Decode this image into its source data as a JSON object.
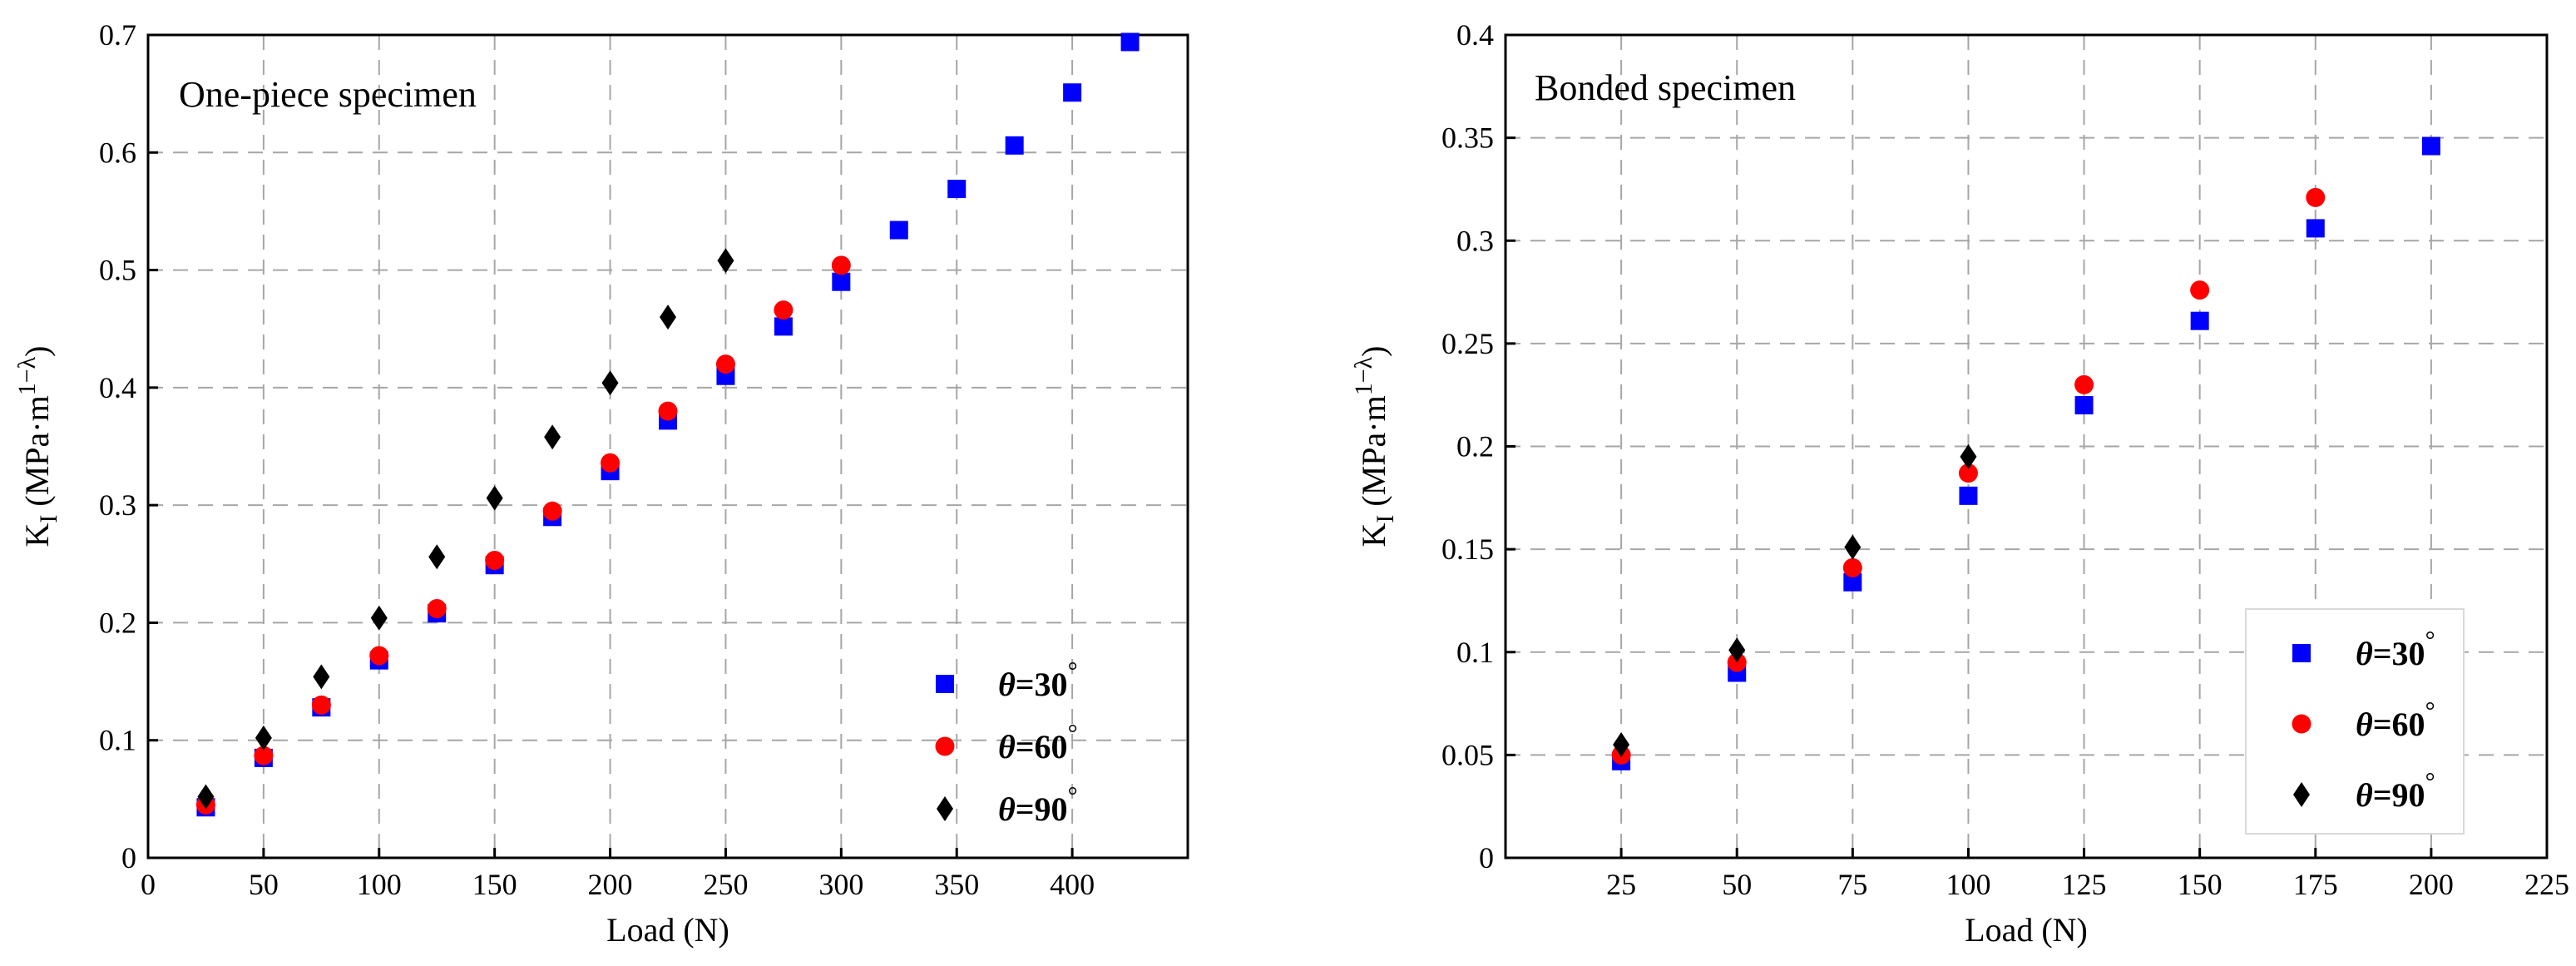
{
  "chart_data": [
    {
      "type": "scatter",
      "title": "One-piece specimen",
      "xlabel": "Load (N)",
      "ylabel": {
        "main": "K",
        "sub": "I",
        "units_prefix": " (MPa·m",
        "units_sup": "1−λ",
        "units_suffix": ")"
      },
      "xlim": [
        0,
        450
      ],
      "ylim": [
        0,
        0.7
      ],
      "xticks": [
        0,
        50,
        100,
        150,
        200,
        250,
        300,
        350,
        400
      ],
      "xtick_labels": [
        "0",
        "50",
        "100",
        "150",
        "200",
        "250",
        "300",
        "350",
        "400"
      ],
      "yticks": [
        0,
        0.1,
        0.2,
        0.3,
        0.4,
        0.5,
        0.6,
        0.7
      ],
      "ytick_labels": [
        "0",
        "0.1",
        "0.2",
        "0.3",
        "0.4",
        "0.5",
        "0.6",
        "0.7"
      ],
      "grid": true,
      "legend_position": "bottom-right",
      "series": [
        {
          "name": "θ=30°",
          "symbol": "θ",
          "value_text": "=30",
          "degree": "°",
          "marker": "square",
          "color": "#0000ff",
          "x": [
            25,
            50,
            75,
            100,
            125,
            150,
            175,
            200,
            225,
            250,
            275,
            300,
            325,
            350,
            375,
            400,
            425
          ],
          "y": [
            0.043,
            0.085,
            0.128,
            0.168,
            0.208,
            0.249,
            0.29,
            0.329,
            0.372,
            0.41,
            0.452,
            0.49,
            0.534,
            0.569,
            0.606,
            0.651,
            0.694
          ]
        },
        {
          "name": "θ=60°",
          "symbol": "θ",
          "value_text": "=60",
          "degree": "°",
          "marker": "circle",
          "color": "#ff0000",
          "x": [
            25,
            50,
            75,
            100,
            125,
            150,
            175,
            200,
            225,
            250,
            275,
            300
          ],
          "y": [
            0.045,
            0.087,
            0.13,
            0.172,
            0.212,
            0.253,
            0.295,
            0.336,
            0.38,
            0.42,
            0.466,
            0.504
          ]
        },
        {
          "name": "θ=90°",
          "symbol": "θ",
          "value_text": "=90",
          "degree": "°",
          "marker": "diamond",
          "color": "#000000",
          "x": [
            25,
            50,
            75,
            100,
            125,
            150,
            175,
            200,
            225,
            250
          ],
          "y": [
            0.052,
            0.102,
            0.154,
            0.204,
            0.256,
            0.306,
            0.358,
            0.404,
            0.46,
            0.508
          ]
        }
      ]
    },
    {
      "type": "scatter",
      "title": "Bonded specimen",
      "xlabel": "Load (N)",
      "ylabel": {
        "main": "K",
        "sub": "I",
        "units_prefix": " (MPa·m",
        "units_sup": "1−λ",
        "units_suffix": ")"
      },
      "xlim": [
        0,
        225
      ],
      "ylim": [
        0,
        0.4
      ],
      "xticks": [
        25,
        50,
        75,
        100,
        125,
        150,
        175,
        200,
        225
      ],
      "xtick_labels": [
        "25",
        "50",
        "75",
        "100",
        "125",
        "150",
        "175",
        "200",
        "225"
      ],
      "yticks": [
        0,
        0.05,
        0.1,
        0.15,
        0.2,
        0.25,
        0.3,
        0.35,
        0.4
      ],
      "ytick_labels": [
        "0",
        "0.05",
        "0.1",
        "0.15",
        "0.2",
        "0.25",
        "0.3",
        "0.35",
        "0.4"
      ],
      "grid": true,
      "legend_position": "bottom-right",
      "series": [
        {
          "name": "θ=30°",
          "symbol": "θ",
          "value_text": "=30",
          "degree": "°",
          "marker": "square",
          "color": "#0000ff",
          "x": [
            25,
            50,
            75,
            100,
            125,
            150,
            175,
            200
          ],
          "y": [
            0.047,
            0.09,
            0.134,
            0.176,
            0.22,
            0.261,
            0.306,
            0.346
          ]
        },
        {
          "name": "θ=60°",
          "symbol": "θ",
          "value_text": "=60",
          "degree": "°",
          "marker": "circle",
          "color": "#ff0000",
          "x": [
            25,
            50,
            75,
            100,
            125,
            150,
            175
          ],
          "y": [
            0.05,
            0.095,
            0.141,
            0.187,
            0.23,
            0.276,
            0.321
          ]
        },
        {
          "name": "θ=90°",
          "symbol": "θ",
          "value_text": "=90",
          "degree": "°",
          "marker": "diamond",
          "color": "#000000",
          "x": [
            25,
            50,
            75,
            100
          ],
          "y": [
            0.055,
            0.101,
            0.151,
            0.195
          ]
        }
      ]
    }
  ]
}
